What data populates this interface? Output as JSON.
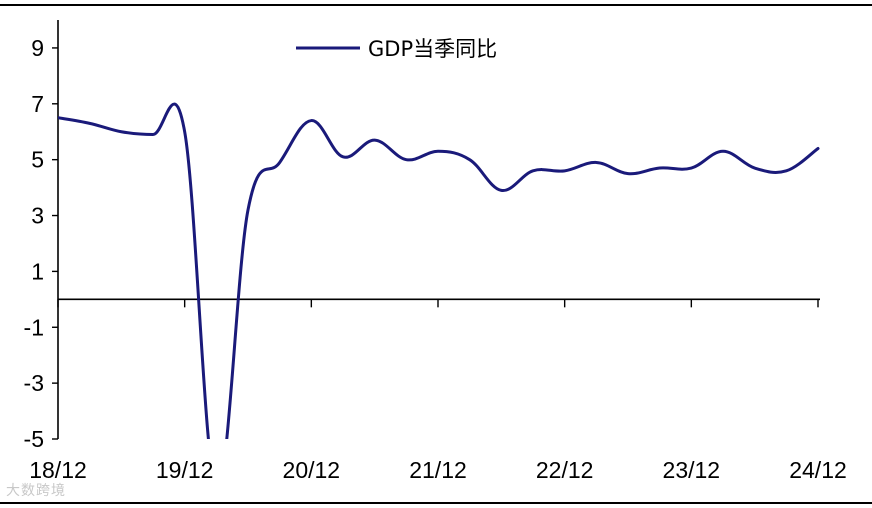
{
  "chart_data": {
    "type": "line",
    "title": "",
    "xlabel": "",
    "ylabel": "",
    "x_ticks": [
      "18/12",
      "19/12",
      "20/12",
      "21/12",
      "22/12",
      "23/12",
      "24/12"
    ],
    "y_ticks": [
      "9",
      "7",
      "5",
      "3",
      "1",
      "-1",
      "-3",
      "-5"
    ],
    "ylim": [
      -5,
      10
    ],
    "grid": false,
    "legend_position": "top-center",
    "series": [
      {
        "name": "GDP当季同比",
        "color": "#1a1a7a",
        "x": [
          "2018-12",
          "2019-03",
          "2019-06",
          "2019-09",
          "2019-12",
          "2020-03",
          "2020-06",
          "2020-09",
          "2020-12",
          "2021-03",
          "2021-06",
          "2021-09",
          "2021-12",
          "2022-03",
          "2022-06",
          "2022-09",
          "2022-12",
          "2023-03",
          "2023-06",
          "2023-09",
          "2023-12",
          "2024-03",
          "2024-06",
          "2024-09",
          "2024-12"
        ],
        "values": [
          6.5,
          6.3,
          6.0,
          5.9,
          6.0,
          -6.8,
          3.2,
          4.9,
          6.4,
          5.1,
          5.7,
          5.0,
          5.3,
          5.0,
          3.9,
          4.6,
          4.6,
          4.9,
          4.5,
          4.7,
          4.7,
          5.3,
          4.7,
          4.6,
          5.4
        ]
      }
    ]
  },
  "watermark": "大数跨境"
}
